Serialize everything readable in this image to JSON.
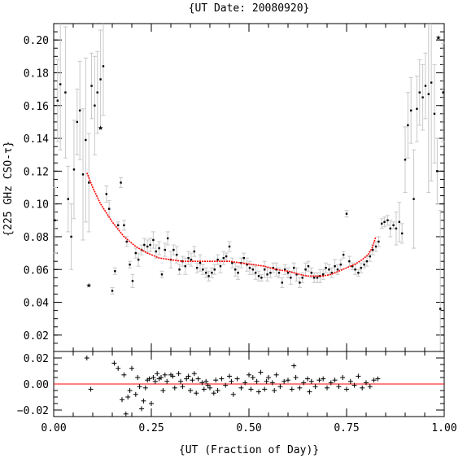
{
  "chart_data": [
    {
      "type": "scatter",
      "title": "{UT Date: 20080920}",
      "xlabel": "",
      "ylabel": "{225 GHz CSO-τ}",
      "xlim": [
        0.0,
        1.0
      ],
      "ylim": [
        0.01,
        0.21
      ],
      "grid": false,
      "yticks": [
        "0.02",
        "0.04",
        "0.06",
        "0.08",
        "0.10",
        "0.12",
        "0.14",
        "0.16",
        "0.18",
        "0.20"
      ],
      "series": [
        {
          "marker": "dot",
          "color": "#000000",
          "errorbar_color": "#c8c8c8",
          "x": [
            0.003,
            0.01,
            0.017,
            0.03,
            0.037,
            0.045,
            0.052,
            0.06,
            0.067,
            0.075,
            0.082,
            0.09,
            0.097,
            0.105,
            0.112,
            0.12,
            0.127,
            0.135,
            0.142,
            0.15,
            0.157,
            0.165,
            0.172,
            0.18,
            0.187,
            0.195,
            0.202,
            0.21,
            0.217,
            0.225,
            0.232,
            0.24,
            0.247,
            0.255,
            0.262,
            0.27,
            0.277,
            0.285,
            0.292,
            0.3,
            0.307,
            0.315,
            0.322,
            0.33,
            0.337,
            0.345,
            0.352,
            0.36,
            0.367,
            0.375,
            0.382,
            0.39,
            0.397,
            0.405,
            0.412,
            0.42,
            0.427,
            0.435,
            0.442,
            0.45,
            0.457,
            0.465,
            0.472,
            0.48,
            0.487,
            0.495,
            0.502,
            0.51,
            0.517,
            0.525,
            0.532,
            0.54,
            0.547,
            0.555,
            0.562,
            0.57,
            0.577,
            0.585,
            0.592,
            0.6,
            0.607,
            0.615,
            0.622,
            0.63,
            0.637,
            0.645,
            0.652,
            0.66,
            0.667,
            0.675,
            0.682,
            0.69,
            0.697,
            0.705,
            0.712,
            0.72,
            0.727,
            0.735,
            0.742,
            0.75,
            0.757,
            0.765,
            0.772,
            0.78,
            0.787,
            0.795,
            0.802,
            0.81,
            0.817,
            0.825,
            0.832,
            0.84,
            0.847,
            0.855,
            0.862,
            0.87,
            0.877,
            0.885,
            0.892,
            0.9,
            0.907,
            0.915,
            0.922,
            0.93,
            0.937,
            0.945,
            0.952,
            0.96,
            0.967,
            0.975,
            0.982,
            0.99,
            0.997
          ],
          "y": [
            0.09,
            0.163,
            0.173,
            0.168,
            0.103,
            0.08,
            0.121,
            0.15,
            0.157,
            0.118,
            0.139,
            0.113,
            0.172,
            0.16,
            0.168,
            0.176,
            0.184,
            0.106,
            0.097,
            0.047,
            0.059,
            0.087,
            0.113,
            0.087,
            0.077,
            0.063,
            0.053,
            0.07,
            0.066,
            0.072,
            0.075,
            0.074,
            0.075,
            0.078,
            0.071,
            0.073,
            0.057,
            0.072,
            0.079,
            0.066,
            0.072,
            0.069,
            0.06,
            0.065,
            0.062,
            0.067,
            0.066,
            0.071,
            0.061,
            0.064,
            0.06,
            0.058,
            0.056,
            0.058,
            0.06,
            0.066,
            0.062,
            0.067,
            0.068,
            0.074,
            0.064,
            0.06,
            0.058,
            0.064,
            0.067,
            0.063,
            0.061,
            0.06,
            0.058,
            0.056,
            0.055,
            0.06,
            0.057,
            0.058,
            0.061,
            0.06,
            0.058,
            0.052,
            0.06,
            0.058,
            0.055,
            0.061,
            0.057,
            0.052,
            0.055,
            0.06,
            0.062,
            0.058,
            0.055,
            0.055,
            0.056,
            0.057,
            0.061,
            0.06,
            0.058,
            0.062,
            0.06,
            0.063,
            0.069,
            0.094,
            0.065,
            0.062,
            0.06,
            0.058,
            0.061,
            0.063,
            0.065,
            0.068,
            0.072,
            0.074,
            0.077,
            0.088,
            0.089,
            0.09,
            0.085,
            0.087,
            0.085,
            0.089,
            0.082,
            0.127,
            0.148,
            0.157,
            0.103,
            0.158,
            0.168,
            0.165,
            0.172,
            0.167,
            0.174,
            0.155,
            0.12,
            0.036,
            0.168
          ],
          "err": [
            0.02,
            0.025,
            0.04,
            0.04,
            0.02,
            0.02,
            0.03,
            0.02,
            0.03,
            0.04,
            0.05,
            0.03,
            0.02,
            0.03,
            0.025,
            0.03,
            0.03,
            0.005,
            0.005,
            0.002,
            0.002,
            0.002,
            0.003,
            0.003,
            0.003,
            0.002,
            0.004,
            0.003,
            0.004,
            0.003,
            0.004,
            0.004,
            0.004,
            0.005,
            0.004,
            0.004,
            0.002,
            0.004,
            0.004,
            0.005,
            0.003,
            0.005,
            0.003,
            0.003,
            0.005,
            0.004,
            0.004,
            0.003,
            0.003,
            0.005,
            0.003,
            0.003,
            0.003,
            0.003,
            0.003,
            0.003,
            0.004,
            0.004,
            0.002,
            0.003,
            0.003,
            0.004,
            0.004,
            0.003,
            0.003,
            0.004,
            0.004,
            0.003,
            0.004,
            0.003,
            0.002,
            0.005,
            0.004,
            0.003,
            0.003,
            0.004,
            0.003,
            0.003,
            0.003,
            0.003,
            0.004,
            0.003,
            0.004,
            0.003,
            0.003,
            0.004,
            0.003,
            0.003,
            0.003,
            0.003,
            0.004,
            0.003,
            0.003,
            0.003,
            0.003,
            0.004,
            0.003,
            0.003,
            0.002,
            0.002,
            0.003,
            0.002,
            0.003,
            0.002,
            0.003,
            0.002,
            0.003,
            0.003,
            0.003,
            0.003,
            0.003,
            0.003,
            0.003,
            0.003,
            0.005,
            0.002,
            0.01,
            0.012,
            0.006,
            0.02,
            0.02,
            0.02,
            0.03,
            0.02,
            0.02,
            0.02,
            0.02,
            0.06,
            0.06,
            0.03,
            0.02,
            0.06,
            0.03
          ]
        },
        {
          "marker": "star",
          "color": "#000000",
          "x": [
            0.09,
            0.12,
            0.985
          ],
          "y": [
            0.051,
            0.147,
            0.202
          ]
        },
        {
          "marker": "line",
          "color": "#ff0000",
          "x": [
            0.085,
            0.1,
            0.12,
            0.15,
            0.18,
            0.21,
            0.24,
            0.27,
            0.3,
            0.33,
            0.36,
            0.39,
            0.42,
            0.45,
            0.48,
            0.51,
            0.54,
            0.57,
            0.6,
            0.63,
            0.65,
            0.67,
            0.69,
            0.71,
            0.73,
            0.75,
            0.77,
            0.79,
            0.805,
            0.815,
            0.825
          ],
          "y": [
            0.119,
            0.11,
            0.1,
            0.089,
            0.08,
            0.074,
            0.07,
            0.067,
            0.066,
            0.065,
            0.065,
            0.065,
            0.065,
            0.065,
            0.064,
            0.063,
            0.062,
            0.06,
            0.059,
            0.057,
            0.056,
            0.056,
            0.056,
            0.057,
            0.059,
            0.061,
            0.063,
            0.066,
            0.069,
            0.073,
            0.08
          ]
        }
      ]
    },
    {
      "type": "scatter",
      "title": "",
      "xlabel": "{UT (Fraction of Day)}",
      "ylabel": "",
      "xlim": [
        0.0,
        1.0
      ],
      "ylim": [
        -0.025,
        0.025
      ],
      "grid": false,
      "xticks": [
        "0.00",
        "0.25",
        "0.50",
        "0.75",
        "1.00"
      ],
      "yticks": [
        "−0.02",
        "0.00",
        "0.02"
      ],
      "reference_line": {
        "y": 0.0,
        "color": "#ff0000"
      },
      "series": [
        {
          "marker": "plus",
          "color": "#000000",
          "x": [
            0.085,
            0.095,
            0.155,
            0.165,
            0.175,
            0.18,
            0.185,
            0.19,
            0.195,
            0.2,
            0.21,
            0.215,
            0.22,
            0.225,
            0.23,
            0.235,
            0.24,
            0.245,
            0.25,
            0.255,
            0.26,
            0.265,
            0.27,
            0.275,
            0.28,
            0.285,
            0.29,
            0.3,
            0.305,
            0.31,
            0.32,
            0.325,
            0.33,
            0.34,
            0.345,
            0.35,
            0.355,
            0.36,
            0.365,
            0.37,
            0.38,
            0.385,
            0.39,
            0.395,
            0.4,
            0.41,
            0.415,
            0.42,
            0.43,
            0.44,
            0.45,
            0.455,
            0.46,
            0.47,
            0.48,
            0.49,
            0.5,
            0.505,
            0.51,
            0.52,
            0.525,
            0.53,
            0.54,
            0.545,
            0.55,
            0.56,
            0.565,
            0.57,
            0.58,
            0.59,
            0.6,
            0.61,
            0.615,
            0.62,
            0.63,
            0.64,
            0.65,
            0.655,
            0.66,
            0.67,
            0.68,
            0.69,
            0.7,
            0.71,
            0.72,
            0.73,
            0.74,
            0.75,
            0.76,
            0.77,
            0.78,
            0.79,
            0.8,
            0.81,
            0.82,
            0.83
          ],
          "y": [
            0.02,
            -0.004,
            0.016,
            0.012,
            -0.012,
            0.007,
            -0.023,
            -0.01,
            -0.005,
            0.012,
            -0.008,
            0.005,
            -0.002,
            -0.019,
            -0.013,
            -0.003,
            0.003,
            0.004,
            -0.015,
            0.005,
            0.002,
            0.008,
            0.004,
            0.005,
            -0.005,
            0.007,
            0.002,
            0.007,
            0.006,
            -0.003,
            0.008,
            0.002,
            -0.002,
            0.004,
            0.006,
            -0.005,
            0.003,
            0.008,
            -0.007,
            0.004,
            0.001,
            -0.004,
            0.002,
            -0.001,
            -0.003,
            -0.007,
            0.003,
            -0.005,
            0.004,
            -0.001,
            0.006,
            0.002,
            -0.008,
            0.004,
            -0.003,
            0.001,
            0.007,
            -0.004,
            0.005,
            0.002,
            -0.006,
            0.009,
            -0.004,
            0.002,
            0.005,
            0.001,
            -0.005,
            0.007,
            -0.002,
            0.002,
            0.003,
            -0.004,
            0.014,
            0.005,
            -0.003,
            0.001,
            0.004,
            -0.006,
            0.002,
            -0.002,
            0.003,
            0.004,
            -0.003,
            0.001,
            0.003,
            -0.002,
            0.005,
            -0.004,
            0.002,
            -0.001,
            0.006,
            -0.003,
            0.001,
            -0.002,
            0.003,
            0.004
          ]
        }
      ]
    }
  ]
}
